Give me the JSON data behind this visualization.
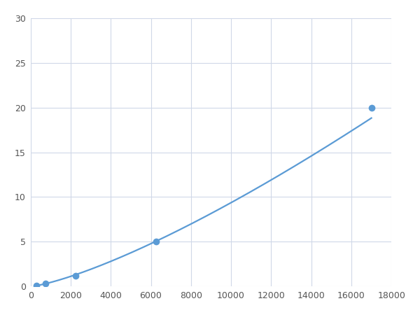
{
  "x_points": [
    300,
    750,
    2250,
    6250,
    17000
  ],
  "y_points": [
    0.1,
    0.3,
    1.2,
    5.0,
    20.0
  ],
  "line_color": "#5b9bd5",
  "marker_color": "#5b9bd5",
  "marker_size": 7,
  "line_width": 1.6,
  "xlim": [
    0,
    18000
  ],
  "ylim": [
    0,
    30
  ],
  "xticks": [
    0,
    2000,
    4000,
    6000,
    8000,
    10000,
    12000,
    14000,
    16000,
    18000
  ],
  "yticks": [
    0,
    5,
    10,
    15,
    20,
    25,
    30
  ],
  "grid_color": "#d0d8e8",
  "background_color": "#ffffff",
  "fig_bg_color": "#ffffff"
}
